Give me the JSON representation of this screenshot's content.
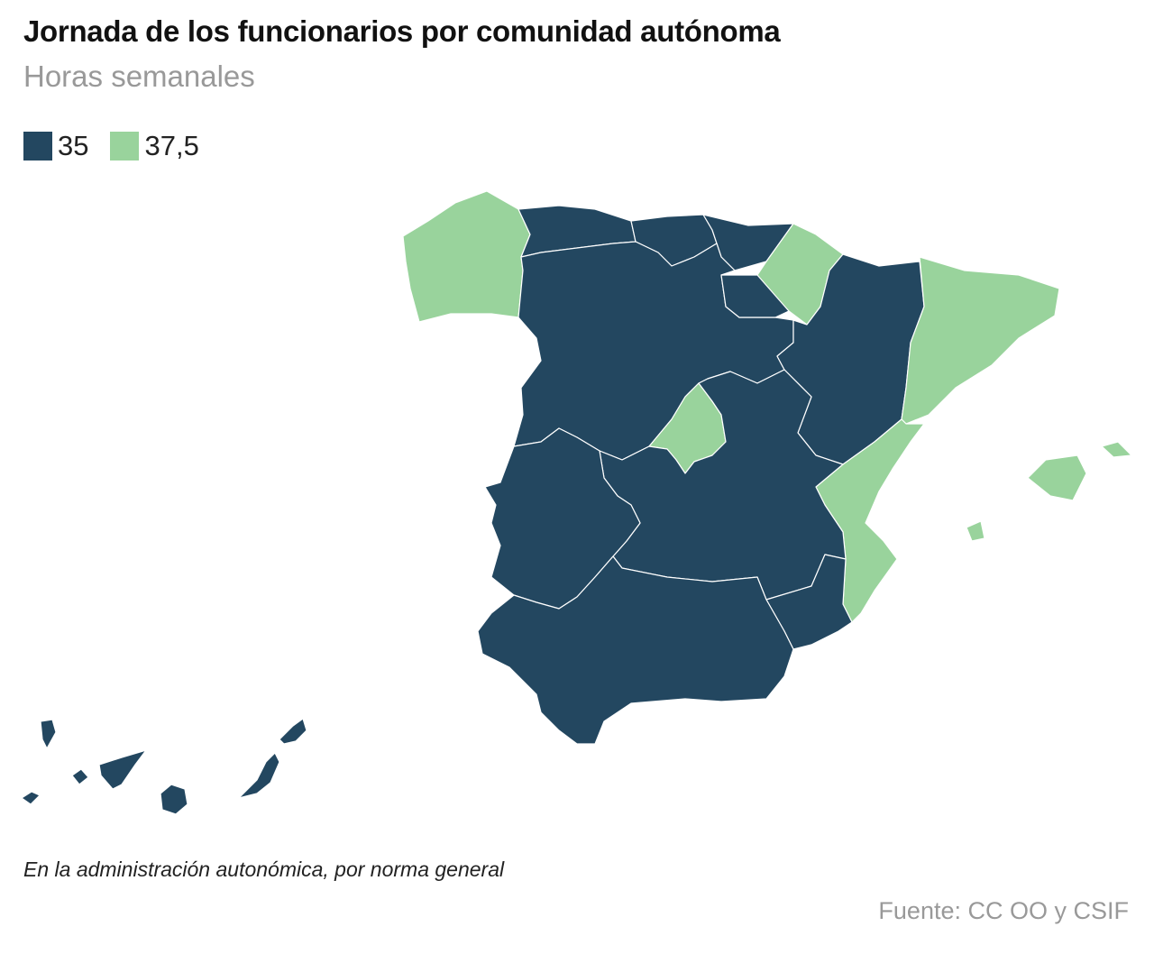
{
  "title": "Jornada de los funcionarios por comunidad autónoma",
  "subtitle": "Horas semanales",
  "legend": [
    {
      "label": "35",
      "color": "#234760"
    },
    {
      "label": "37,5",
      "color": "#99d39c"
    }
  ],
  "regions": {
    "galicia": 37.5,
    "asturias": 35,
    "cantabria": 35,
    "pais_vasco": 35,
    "navarra": 37.5,
    "la_rioja": 35,
    "aragon": 35,
    "cataluna": 37.5,
    "castilla_y_leon": 35,
    "madrid": 37.5,
    "castilla_la_mancha": 35,
    "valencia": 37.5,
    "extremadura": 35,
    "murcia": 35,
    "andalucia": 35,
    "baleares": 37.5,
    "canarias": 35
  },
  "note": "En la administración autonómica, por norma general",
  "source": "Fuente: CC OO y CSIF"
}
